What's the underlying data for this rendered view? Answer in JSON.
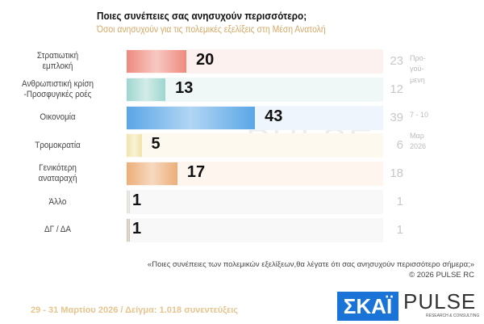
{
  "chart_data": {
    "type": "bar",
    "orientation": "horizontal",
    "title": "Ποιες συνέπειες σας ανησυχούν περισσότερο;",
    "subtitle": "Όσοι ανησυχούν για τις πολεμικές εξελίξεις στη Μέση Ανατολή",
    "categories": [
      "Στρατιωτική εμπλοκή",
      "Ανθρωπιστική κρίση -Προσφυγικές ροές",
      "Οικονομία",
      "Τρομοκρατία",
      "Γενικότερη αναταραχή",
      "Άλλο",
      "ΔΓ / ΔΑ"
    ],
    "labels": [
      [
        "Στρατιωτική",
        "εμπλοκή"
      ],
      [
        "Ανθρωπιστική κρίση",
        "-Προσφυγικές ροές"
      ],
      [
        "Οικονομία"
      ],
      [
        "Τρομοκρατία"
      ],
      [
        "Γενικότερη",
        "αναταραχή"
      ],
      [
        "Άλλο"
      ],
      [
        "ΔΓ / ΔΑ"
      ]
    ],
    "values": [
      20,
      13,
      43,
      5,
      17,
      1,
      1
    ],
    "previous_values": [
      23,
      12,
      39,
      6,
      18,
      1,
      1
    ],
    "previous_note": [
      "Προ-",
      "γού-",
      "μενη",
      "7 - 10",
      "Μαρ",
      "2026"
    ],
    "colors": [
      "#ee8a7e",
      "#9fd6cf",
      "#5aa6e6",
      "#f2e3a8",
      "#ecae78",
      "#ddd8cf",
      "#c9bba8"
    ],
    "band_colors": [
      "#fdf1ef",
      "#f0f8f7",
      "#eef5fc",
      "#fdf9ee",
      "#fdf5ee",
      "#f8f8f8",
      "#f8f8f8"
    ]
  },
  "question": "«Ποιες συνέπειες των πολεμικών εξελίξεων,θα λέγατε ότι σας ανησυχούν περισσότερο σήμερα;»",
  "copyright": "©  2026  PULSE RC",
  "footer": "29 - 31  Μαρτίου 2026  /  Δείγμα:  1.018 συνεντεύξεις",
  "logos": {
    "skai": "ΣΚΑΪ",
    "pulse": "PULSE",
    "pulse_sub": "RESEARCH & CONSULTING"
  }
}
